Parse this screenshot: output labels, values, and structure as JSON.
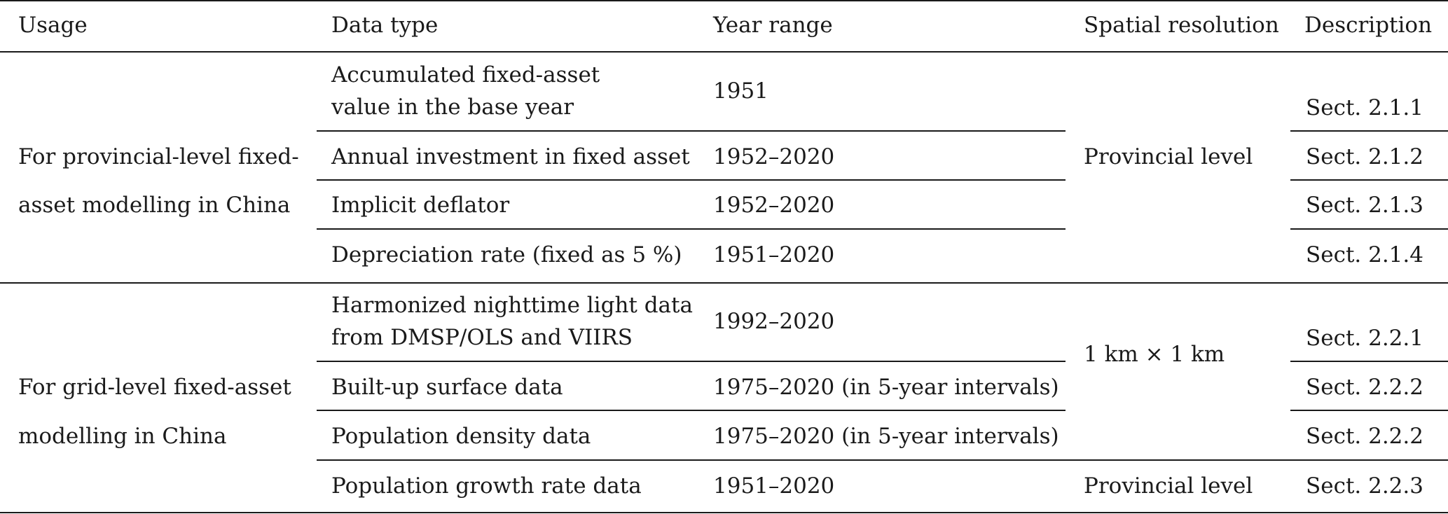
{
  "table": {
    "headers": {
      "usage": "Usage",
      "data_type": "Data type",
      "year_range": "Year range",
      "spatial_resolution": "Spatial resolution",
      "description": "Description"
    },
    "groups": [
      {
        "usage_line1": "For provincial-level fixed-",
        "usage_line2": "asset modelling in China",
        "spatial_resolution": "Provincial level",
        "rows": [
          {
            "data_type_line1": "Accumulated fixed-asset",
            "data_type_line2": "value in the base year",
            "year_range": "1951",
            "description": "Sect. 2.1.1"
          },
          {
            "data_type": "Annual investment in fixed asset",
            "year_range": "1952–2020",
            "description": "Sect. 2.1.2"
          },
          {
            "data_type": "Implicit deflator",
            "year_range": "1952–2020",
            "description": "Sect. 2.1.3"
          },
          {
            "data_type": "Depreciation rate (fixed as 5 %)",
            "year_range": "1951–2020",
            "description": "Sect. 2.1.4"
          }
        ]
      },
      {
        "usage_line1": "For grid-level fixed-asset",
        "usage_line2": "modelling in China",
        "spatial_resolution": "1 km × 1 km",
        "rows": [
          {
            "data_type_line1": "Harmonized nighttime light data",
            "data_type_line2": "from DMSP/OLS and VIIRS",
            "year_range": "1992–2020",
            "description": "Sect. 2.2.1"
          },
          {
            "data_type": "Built-up surface data",
            "year_range": "1975–2020 (in 5-year intervals)",
            "description": "Sect. 2.2.2"
          },
          {
            "data_type": "Population density data",
            "year_range": "1975–2020 (in 5-year intervals)",
            "description": "Sect. 2.2.2"
          },
          {
            "data_type": "Population growth rate data",
            "year_range": "1951–2020",
            "spatial_resolution": "Provincial level",
            "description": "Sect. 2.2.3"
          }
        ]
      }
    ]
  }
}
